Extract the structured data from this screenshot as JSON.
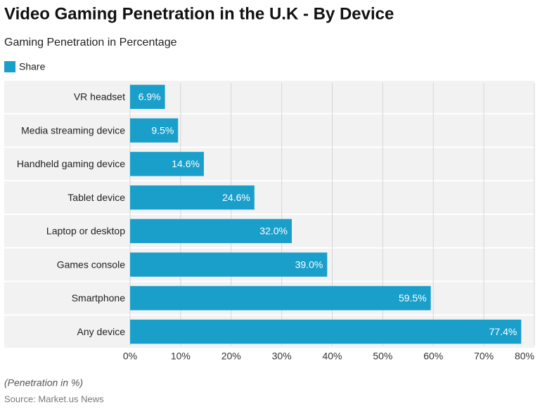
{
  "chart_data": {
    "type": "bar",
    "orientation": "horizontal",
    "title": "Video Gaming Penetration in the U.K - By Device",
    "subtitle": "Gaming Penetration in Percentage",
    "categories": [
      "VR headset",
      "Media streaming device",
      "Handheld gaming device",
      "Tablet device",
      "Laptop or desktop",
      "Games console",
      "Smartphone",
      "Any device"
    ],
    "series": [
      {
        "name": "Share",
        "color": "#1a9fcb",
        "values": [
          6.9,
          9.5,
          14.6,
          24.6,
          32.0,
          39.0,
          59.5,
          77.4
        ],
        "value_labels": [
          "6.9%",
          "9.5%",
          "14.6%",
          "24.6%",
          "32.0%",
          "39.0%",
          "59.5%",
          "77.4%"
        ]
      }
    ],
    "xlim": [
      0,
      80
    ],
    "xticks": [
      {
        "value": 0,
        "label": "0%"
      },
      {
        "value": 10,
        "label": "10%"
      },
      {
        "value": 20,
        "label": "20%"
      },
      {
        "value": 30,
        "label": "30%"
      },
      {
        "value": 40,
        "label": "40%"
      },
      {
        "value": 50,
        "label": "50%"
      },
      {
        "value": 60,
        "label": "60%"
      },
      {
        "value": 70,
        "label": "70%"
      },
      {
        "value": 80,
        "label": "80%"
      }
    ],
    "grid": true,
    "legend": "top-left",
    "note": "(Penetration in %)",
    "source": "Source: Market.us News"
  }
}
